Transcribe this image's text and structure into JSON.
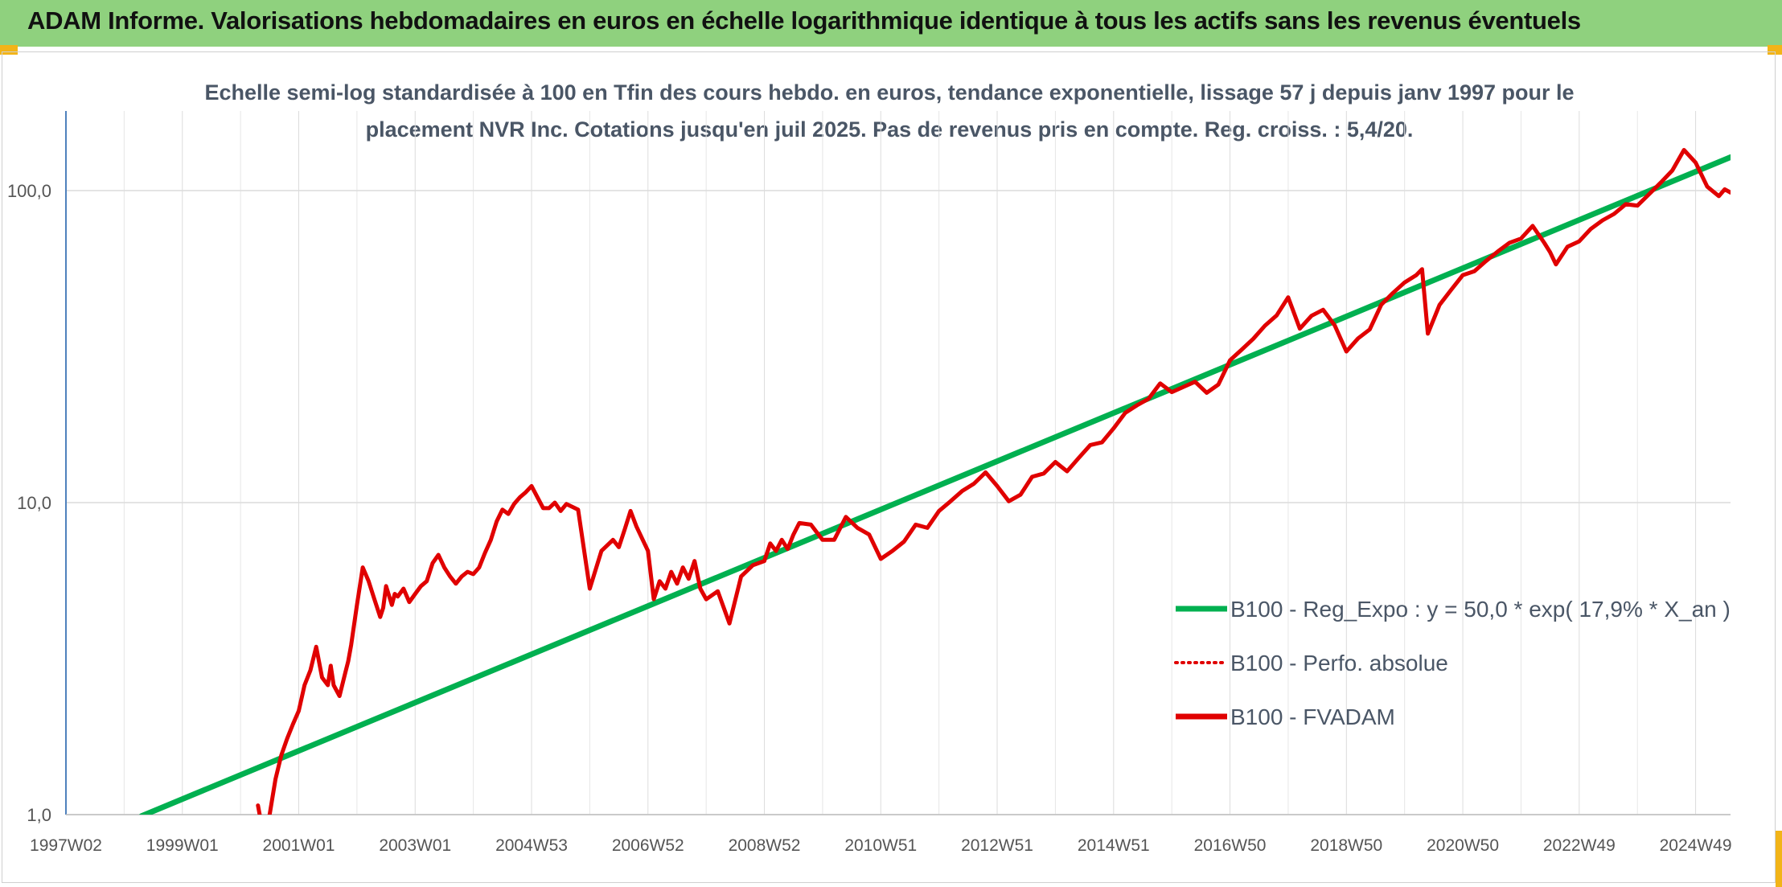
{
  "header": {
    "title": "ADAM Informe. Valorisations hebdomadaires en euros en échelle logarithmique identique à tous les actifs sans les revenus éventuels"
  },
  "chart_data": {
    "type": "line",
    "title": "",
    "subtitle_lines": [
      "Echelle semi-log standardisée à 100 en Tfin des cours hebdo. en euros, tendance exponentielle, lissage 57 j depuis janv 1997 pour le",
      "placement NVR Inc. Cotations jusqu'en juil 2025. Pas de revenus pris en compte. Reg. croiss. : 5,4/20."
    ],
    "y_scale": "log",
    "ylim": [
      1,
      180
    ],
    "y_ticks": [
      1,
      10,
      100
    ],
    "y_tick_labels": [
      "1,0",
      "10,0",
      "100,0"
    ],
    "xlim": [
      1997.0,
      2025.6
    ],
    "x_ticks": [
      1997.0,
      1999.0,
      2001.0,
      2003.0,
      2005.0,
      2007.0,
      2009.0,
      2011.0,
      2013.0,
      2015.0,
      2017.0,
      2019.0,
      2021.0,
      2023.0,
      2025.0
    ],
    "x_tick_labels": [
      "1997W02",
      "1999W01",
      "2001W01",
      "2003W01",
      "2004W53",
      "2006W52",
      "2008W52",
      "2010W51",
      "2012W51",
      "2014W51",
      "2016W50",
      "2018W50",
      "2020W50",
      "2022W49",
      "2024W49"
    ],
    "grid": true,
    "legend_placement": "center-right",
    "colors": {
      "trend": "#00b050",
      "perf": "#e00000",
      "fvadam": "#e00000",
      "header_bg": "#8fd17e"
    },
    "series": [
      {
        "name": "B100 - Reg_Expo : y = 50,0 * exp( 17,9% *  X_an )",
        "style": "solid-thick",
        "x": [
          1998.3,
          2025.6
        ],
        "y": [
          0.99,
          128
        ]
      },
      {
        "name": "B100 - Perfo. absolue",
        "style": "dotted",
        "x": [],
        "y": []
      },
      {
        "name": "B100 - FVADAM",
        "style": "solid-thick",
        "x": [
          2000.3,
          2000.35,
          2000.4,
          2000.5,
          2000.6,
          2000.7,
          2000.8,
          2000.9,
          2001.0,
          2001.1,
          2001.2,
          2001.3,
          2001.4,
          2001.5,
          2001.55,
          2001.6,
          2001.7,
          2001.8,
          2001.85,
          2001.9,
          2002.0,
          2002.1,
          2002.2,
          2002.3,
          2002.4,
          2002.45,
          2002.5,
          2002.6,
          2002.65,
          2002.7,
          2002.8,
          2002.9,
          2003.0,
          2003.1,
          2003.2,
          2003.3,
          2003.4,
          2003.5,
          2003.6,
          2003.7,
          2003.8,
          2003.9,
          2004.0,
          2004.1,
          2004.2,
          2004.3,
          2004.4,
          2004.5,
          2004.6,
          2004.7,
          2004.8,
          2004.9,
          2005.0,
          2005.2,
          2005.3,
          2005.4,
          2005.5,
          2005.6,
          2005.8,
          2006.0,
          2006.2,
          2006.4,
          2006.5,
          2006.6,
          2006.7,
          2006.8,
          2007.0,
          2007.1,
          2007.2,
          2007.3,
          2007.4,
          2007.5,
          2007.6,
          2007.7,
          2007.8,
          2007.9,
          2008.0,
          2008.2,
          2008.4,
          2008.6,
          2008.8,
          2009.0,
          2009.1,
          2009.2,
          2009.3,
          2009.4,
          2009.5,
          2009.6,
          2009.8,
          2010.0,
          2010.2,
          2010.4,
          2010.6,
          2010.8,
          2011.0,
          2011.2,
          2011.4,
          2011.6,
          2011.8,
          2012.0,
          2012.2,
          2012.4,
          2012.6,
          2012.8,
          2013.0,
          2013.2,
          2013.4,
          2013.6,
          2013.8,
          2014.0,
          2014.2,
          2014.4,
          2014.6,
          2014.8,
          2015.0,
          2015.2,
          2015.4,
          2015.6,
          2015.8,
          2016.0,
          2016.2,
          2016.4,
          2016.6,
          2016.8,
          2017.0,
          2017.2,
          2017.4,
          2017.6,
          2017.8,
          2018.0,
          2018.2,
          2018.4,
          2018.6,
          2018.8,
          2019.0,
          2019.2,
          2019.4,
          2019.6,
          2019.8,
          2020.0,
          2020.2,
          2020.3,
          2020.4,
          2020.6,
          2020.8,
          2021.0,
          2021.2,
          2021.4,
          2021.6,
          2021.8,
          2022.0,
          2022.2,
          2022.4,
          2022.5,
          2022.6,
          2022.8,
          2023.0,
          2023.2,
          2023.4,
          2023.6,
          2023.8,
          2024.0,
          2024.2,
          2024.4,
          2024.6,
          2024.8,
          2025.0,
          2025.2,
          2025.4,
          2025.5,
          2025.6
        ],
        "y": [
          1.07,
          0.95,
          0.9,
          1.0,
          1.3,
          1.55,
          1.75,
          1.95,
          2.15,
          2.6,
          2.9,
          3.45,
          2.75,
          2.6,
          3.0,
          2.6,
          2.4,
          2.85,
          3.1,
          3.5,
          4.7,
          6.2,
          5.6,
          4.9,
          4.3,
          4.6,
          5.4,
          4.7,
          5.1,
          5.0,
          5.3,
          4.8,
          5.1,
          5.4,
          5.6,
          6.4,
          6.8,
          6.2,
          5.8,
          5.5,
          5.8,
          6.0,
          5.9,
          6.2,
          6.9,
          7.6,
          8.7,
          9.5,
          9.2,
          9.9,
          10.4,
          10.8,
          11.3,
          9.6,
          9.6,
          10.0,
          9.4,
          9.9,
          9.5,
          5.3,
          7.0,
          7.6,
          7.2,
          8.2,
          9.4,
          8.4,
          7.0,
          4.9,
          5.6,
          5.3,
          6.0,
          5.5,
          6.2,
          5.7,
          6.5,
          5.3,
          4.9,
          5.2,
          4.1,
          5.8,
          6.3,
          6.5,
          7.4,
          7.0,
          7.6,
          7.1,
          7.9,
          8.6,
          8.5,
          7.6,
          7.6,
          9.0,
          8.3,
          7.9,
          6.6,
          7.0,
          7.5,
          8.5,
          8.3,
          9.4,
          10.1,
          10.9,
          11.5,
          12.5,
          11.3,
          10.1,
          10.6,
          12.1,
          12.4,
          13.5,
          12.6,
          13.9,
          15.3,
          15.6,
          17.3,
          19.4,
          20.5,
          21.5,
          24.1,
          22.6,
          23.5,
          24.4,
          22.5,
          23.9,
          28.6,
          30.9,
          33.5,
          36.9,
          39.8,
          45.5,
          36.1,
          39.7,
          41.5,
          37.0,
          30.5,
          33.6,
          35.9,
          43.1,
          47.0,
          50.8,
          53.6,
          56.0,
          34.8,
          43.0,
          48.1,
          53.6,
          55.2,
          59.5,
          63.8,
          68.0,
          70.2,
          77.1,
          68.0,
          63.5,
          58.0,
          66.1,
          68.8,
          75.4,
          80.3,
          84.2,
          90.5,
          89.5,
          97.4,
          106,
          116,
          135,
          123,
          103,
          96.0,
          101,
          98.6
        ]
      }
    ]
  }
}
